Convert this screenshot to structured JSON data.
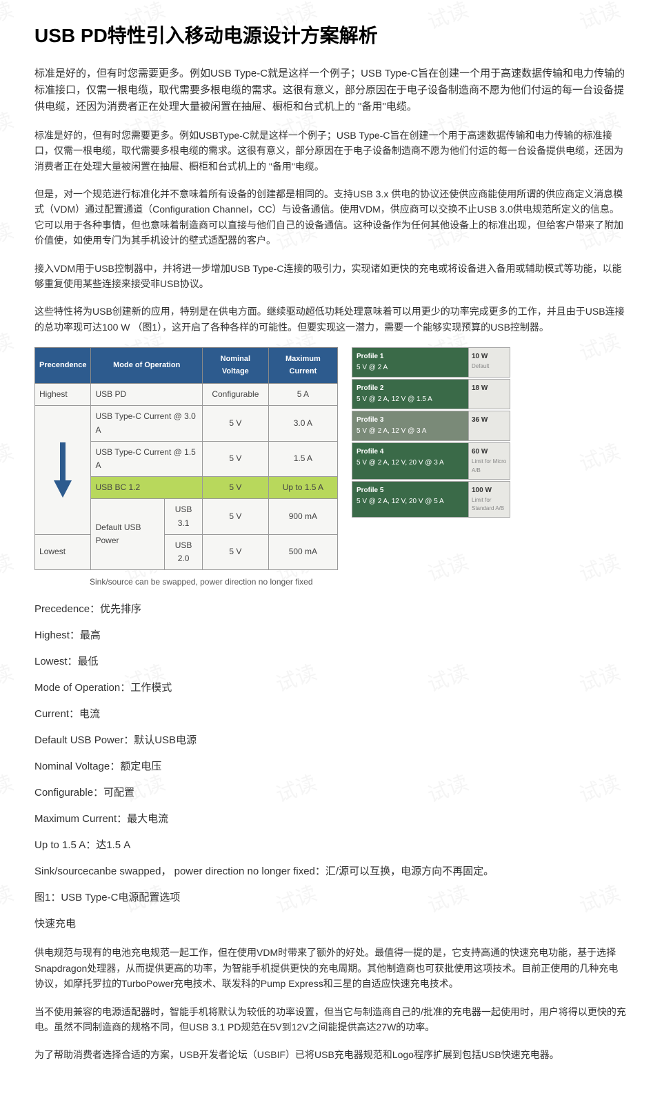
{
  "title": "USB PD特性引入移动电源设计方案解析",
  "paras": {
    "p1": "标准是好的，但有时您需要更多。例如USB Type-C就是这样一个例子；USB Type-C旨在创建一个用于高速数据传输和电力传输的标准接口，仅需一根电缆，取代需要多根电缆的需求。这很有意义，部分原因在于电子设备制造商不愿为他们付运的每一台设备提供电缆，还因为消费者正在处理大量被闲置在抽屉、橱柜和台式机上的 \"备用\"电缆。",
    "p2": "标准是好的，但有时您需要更多。例如USBType-C就是这样一个例子；USB Type-C旨在创建一个用于高速数据传输和电力传输的标准接口，仅需一根电缆，取代需要多根电缆的需求。这很有意义，部分原因在于电子设备制造商不愿为他们付运的每一台设备提供电缆，还因为消费者正在处理大量被闲置在抽屉、橱柜和台式机上的 \"备用\"电缆。",
    "p3": "但是，对一个规范进行标准化并不意味着所有设备的创建都是相同的。支持USB 3.x 供电的协议还使供应商能使用所谓的供应商定义消息模式（VDM）通过配置通道（Configuration Channel，CC）与设备通信。使用VDM，供应商可以交换不止USB 3.0供电规范所定义的信息。它可以用于各种事情，但也意味着制造商可以直接与他们自己的设备通信。这种设备作为任何其他设备上的标准出现，但给客户带来了附加价值使，如使用专门为其手机设计的壁式适配器的客户。",
    "p4": "接入VDM用于USB控制器中，并将进一步增加USB Type-C连接的吸引力，实现诸如更快的充电或将设备进入备用或辅助模式等功能，以能够重复使用某些连接来接受非USB协议。",
    "p5": "这些特性将为USB创建新的应用，特别是在供电方面。继续驱动超低功耗处理意味着可以用更少的功率完成更多的工作，并且由于USB连接的总功率现可达100 W （图1），这开启了各种各样的可能性。但要实现这一潜力，需要一个能够实现预算的USB控制器。"
  },
  "table": {
    "headers": [
      "Precendence",
      "Mode of Operation",
      "Nominal Voltage",
      "Maximum Current"
    ],
    "highest": "Highest",
    "lowest": "Lowest",
    "rows": [
      {
        "mode": "USB PD",
        "volt": "Configurable",
        "cur": "5 A",
        "span": 2
      },
      {
        "mode": "USB Type-C Current @ 3.0 A",
        "volt": "5 V",
        "cur": "3.0 A",
        "span": 2
      },
      {
        "mode": "USB Type-C Current @ 1.5 A",
        "volt": "5 V",
        "cur": "1.5 A",
        "span": 2
      },
      {
        "mode": "USB BC 1.2",
        "volt": "5 V",
        "cur": "Up to 1.5 A",
        "span": 2,
        "hl": true
      },
      {
        "mode": "Default USB Power",
        "sub": "USB 3.1",
        "volt": "5 V",
        "cur": "900 mA"
      },
      {
        "mode": "",
        "sub": "USB 2.0",
        "volt": "5 V",
        "cur": "500 mA"
      }
    ]
  },
  "caption": "Sink/source can be swapped, power direction no longer fixed",
  "profiles": [
    {
      "name": "Profile 1",
      "detail": "5 V @ 2 A",
      "watt": "10 W",
      "sub": "Default",
      "color": "#3a6a48"
    },
    {
      "name": "Profile 2",
      "detail": "5 V @ 2 A, 12 V @ 1.5 A",
      "watt": "18 W",
      "sub": "",
      "color": "#3a6a48"
    },
    {
      "name": "Profile 3",
      "detail": "5 V @ 2 A, 12 V @ 3 A",
      "watt": "36 W",
      "sub": "",
      "color": "#7a8a78"
    },
    {
      "name": "Profile 4",
      "detail": "5 V @ 2 A, 12 V, 20 V @ 3 A",
      "watt": "60 W",
      "sub": "Limit for Micro A/B",
      "color": "#3a6a48"
    },
    {
      "name": "Profile 5",
      "detail": "5 V @ 2 A, 12 V, 20 V @ 5 A",
      "watt": "100 W",
      "sub": "Limit for Standard A/B",
      "color": "#3a6a48"
    }
  ],
  "definitions": [
    "Precedence：优先排序",
    "Highest：最高",
    "Lowest：最低",
    "Mode of Operation：工作模式",
    "Current：电流",
    "Default USB Power：默认USB电源",
    "Nominal Voltage：额定电压",
    "Configurable：可配置",
    "Maximum Current：最大电流",
    "Up to 1.5 A：达1.5 A",
    "Sink/sourcecanbe swapped， power direction no longer fixed：汇/源可以互换，电源方向不再固定。",
    "图1：USB Type-C电源配置选项"
  ],
  "section2_title": "快速充电",
  "paras2": {
    "p1": "供电规范与现有的电池充电规范一起工作，但在使用VDM时带来了额外的好处。最值得一提的是，它支持高通的快速充电功能，基于选择Snapdragon处理器，从而提供更高的功率，为智能手机提供更快的充电周期。其他制造商也可获批使用这项技术。目前正使用的几种充电协议，如摩托罗拉的TurboPower充电技术、联发科的Pump Express和三星的自适应快速充电技术。",
    "p2": "当不使用兼容的电源适配器时，智能手机将默认为较低的功率设置，但当它与制造商自己的/批准的充电器一起使用时，用户将得以更快的充电。虽然不同制造商的规格不同，但USB 3.1 PD规范在5V到12V之间能提供高达27W的功率。",
    "p3": "为了帮助消费者选择合适的方案，USB开发者论坛（USBIF）已将USB充电器规范和Logo程序扩展到包括USB快速充电器。"
  },
  "watermark": "试读",
  "colors": {
    "th_bg": "#2d5b8e",
    "hl_bg": "#b8d85c"
  }
}
